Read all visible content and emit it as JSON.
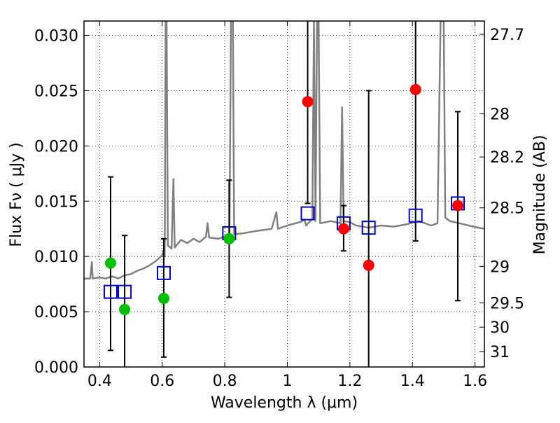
{
  "chart_data": {
    "type": "scatter",
    "title": "",
    "xlabel": "Wavelength  λ (μm)",
    "ylabel": "Flux  Fν  ( μJy )",
    "ylabel_right": "Magnitude (AB)",
    "xlim": [
      0.35,
      1.63
    ],
    "ylim": [
      0.0,
      0.0313
    ],
    "grid": true,
    "x_ticks": [
      0.4,
      0.6,
      0.8,
      1.0,
      1.2,
      1.4,
      1.6
    ],
    "x_tick_labels": [
      "0.4",
      "0.6",
      "0.8",
      "1",
      "1.2",
      "1.4",
      "1.6"
    ],
    "y_ticks": [
      0.0,
      0.005,
      0.01,
      0.015,
      0.02,
      0.025,
      0.03
    ],
    "y_tick_labels": [
      "0.000",
      "0.005",
      "0.010",
      "0.015",
      "0.020",
      "0.025",
      "0.030"
    ],
    "right_ticks": [
      {
        "label": "27.7",
        "flux": 0.0301
      },
      {
        "label": "28",
        "flux": 0.0229
      },
      {
        "label": "28.2",
        "flux": 0.019
      },
      {
        "label": "28.5",
        "flux": 0.0144
      },
      {
        "label": "29",
        "flux": 0.0091
      },
      {
        "label": "29.5",
        "flux": 0.0058
      },
      {
        "label": "30",
        "flux": 0.0036
      },
      {
        "label": "31",
        "flux": 0.0014
      }
    ],
    "observed_green": [
      {
        "x": 0.435,
        "y": 0.0094
      },
      {
        "x": 0.48,
        "y": 0.0052
      },
      {
        "x": 0.605,
        "y": 0.0062
      },
      {
        "x": 0.814,
        "y": 0.0116
      }
    ],
    "observed_red": [
      {
        "x": 1.065,
        "y": 0.024
      },
      {
        "x": 1.18,
        "y": 0.0125
      },
      {
        "x": 1.26,
        "y": 0.0092
      },
      {
        "x": 1.41,
        "y": 0.0251
      },
      {
        "x": 1.545,
        "y": 0.0146
      }
    ],
    "error_bars": [
      {
        "x": 0.435,
        "lo": 0.0015,
        "hi": 0.0172,
        "cap_lo": true,
        "cap_hi": true
      },
      {
        "x": 0.48,
        "lo": 0.0,
        "hi": 0.0119,
        "cap_lo": false,
        "cap_hi": true
      },
      {
        "x": 0.605,
        "lo": 0.0009,
        "hi": 0.0116,
        "cap_lo": true,
        "cap_hi": true
      },
      {
        "x": 0.814,
        "lo": 0.0063,
        "hi": 0.0169,
        "cap_lo": true,
        "cap_hi": true
      },
      {
        "x": 1.065,
        "lo": 0.0148,
        "hi": 0.0313,
        "cap_lo": true,
        "cap_hi": false
      },
      {
        "x": 1.18,
        "lo": 0.0105,
        "hi": 0.0146,
        "cap_lo": true,
        "cap_hi": true
      },
      {
        "x": 1.26,
        "lo": 0.0,
        "hi": 0.025,
        "cap_lo": false,
        "cap_hi": true
      },
      {
        "x": 1.41,
        "lo": 0.0114,
        "hi": 0.0313,
        "cap_lo": true,
        "cap_hi": false
      },
      {
        "x": 1.545,
        "lo": 0.006,
        "hi": 0.0231,
        "cap_lo": true,
        "cap_hi": true
      }
    ],
    "model_boxes": [
      {
        "x": 0.435,
        "y": 0.0068
      },
      {
        "x": 0.48,
        "y": 0.0068
      },
      {
        "x": 0.605,
        "y": 0.0085
      },
      {
        "x": 0.814,
        "y": 0.0121
      },
      {
        "x": 1.065,
        "y": 0.0139
      },
      {
        "x": 1.18,
        "y": 0.013
      },
      {
        "x": 1.26,
        "y": 0.0126
      },
      {
        "x": 1.41,
        "y": 0.0137
      },
      {
        "x": 1.545,
        "y": 0.0148
      }
    ],
    "spectrum": [
      [
        0.35,
        0.008
      ],
      [
        0.37,
        0.008
      ],
      [
        0.375,
        0.0095
      ],
      [
        0.378,
        0.008
      ],
      [
        0.4,
        0.0081
      ],
      [
        0.42,
        0.008
      ],
      [
        0.44,
        0.0082
      ],
      [
        0.46,
        0.008
      ],
      [
        0.48,
        0.0083
      ],
      [
        0.5,
        0.0084
      ],
      [
        0.52,
        0.0087
      ],
      [
        0.54,
        0.0089
      ],
      [
        0.56,
        0.0092
      ],
      [
        0.58,
        0.0096
      ],
      [
        0.6,
        0.0101
      ],
      [
        0.605,
        0.0106
      ],
      [
        0.608,
        0.01
      ],
      [
        0.611,
        0.0313
      ],
      [
        0.614,
        0.0313
      ],
      [
        0.618,
        0.011
      ],
      [
        0.63,
        0.0107
      ],
      [
        0.636,
        0.017
      ],
      [
        0.64,
        0.0108
      ],
      [
        0.66,
        0.0115
      ],
      [
        0.68,
        0.0112
      ],
      [
        0.7,
        0.0116
      ],
      [
        0.72,
        0.0113
      ],
      [
        0.74,
        0.0118
      ],
      [
        0.745,
        0.013
      ],
      [
        0.75,
        0.0117
      ],
      [
        0.78,
        0.0116
      ],
      [
        0.8,
        0.0118
      ],
      [
        0.815,
        0.0119
      ],
      [
        0.82,
        0.0313
      ],
      [
        0.826,
        0.0313
      ],
      [
        0.83,
        0.012
      ],
      [
        0.86,
        0.0121
      ],
      [
        0.9,
        0.0123
      ],
      [
        0.95,
        0.0125
      ],
      [
        0.965,
        0.014
      ],
      [
        0.97,
        0.0125
      ],
      [
        1.0,
        0.0128
      ],
      [
        1.04,
        0.0131
      ],
      [
        1.055,
        0.0133
      ],
      [
        1.06,
        0.0128
      ],
      [
        1.08,
        0.0134
      ],
      [
        1.085,
        0.0313
      ],
      [
        1.09,
        0.0132
      ],
      [
        1.095,
        0.0313
      ],
      [
        1.1,
        0.0313
      ],
      [
        1.105,
        0.013
      ],
      [
        1.14,
        0.0132
      ],
      [
        1.17,
        0.013
      ],
      [
        1.175,
        0.0235
      ],
      [
        1.18,
        0.0132
      ],
      [
        1.2,
        0.0131
      ],
      [
        1.22,
        0.0128
      ],
      [
        1.26,
        0.0126
      ],
      [
        1.3,
        0.0128
      ],
      [
        1.34,
        0.0127
      ],
      [
        1.38,
        0.0129
      ],
      [
        1.42,
        0.0132
      ],
      [
        1.46,
        0.0128
      ],
      [
        1.48,
        0.013
      ],
      [
        1.49,
        0.0313
      ],
      [
        1.5,
        0.0313
      ],
      [
        1.505,
        0.0135
      ],
      [
        1.52,
        0.0132
      ],
      [
        1.55,
        0.013
      ],
      [
        1.58,
        0.0128
      ],
      [
        1.61,
        0.0126
      ],
      [
        1.63,
        0.0125
      ]
    ]
  }
}
